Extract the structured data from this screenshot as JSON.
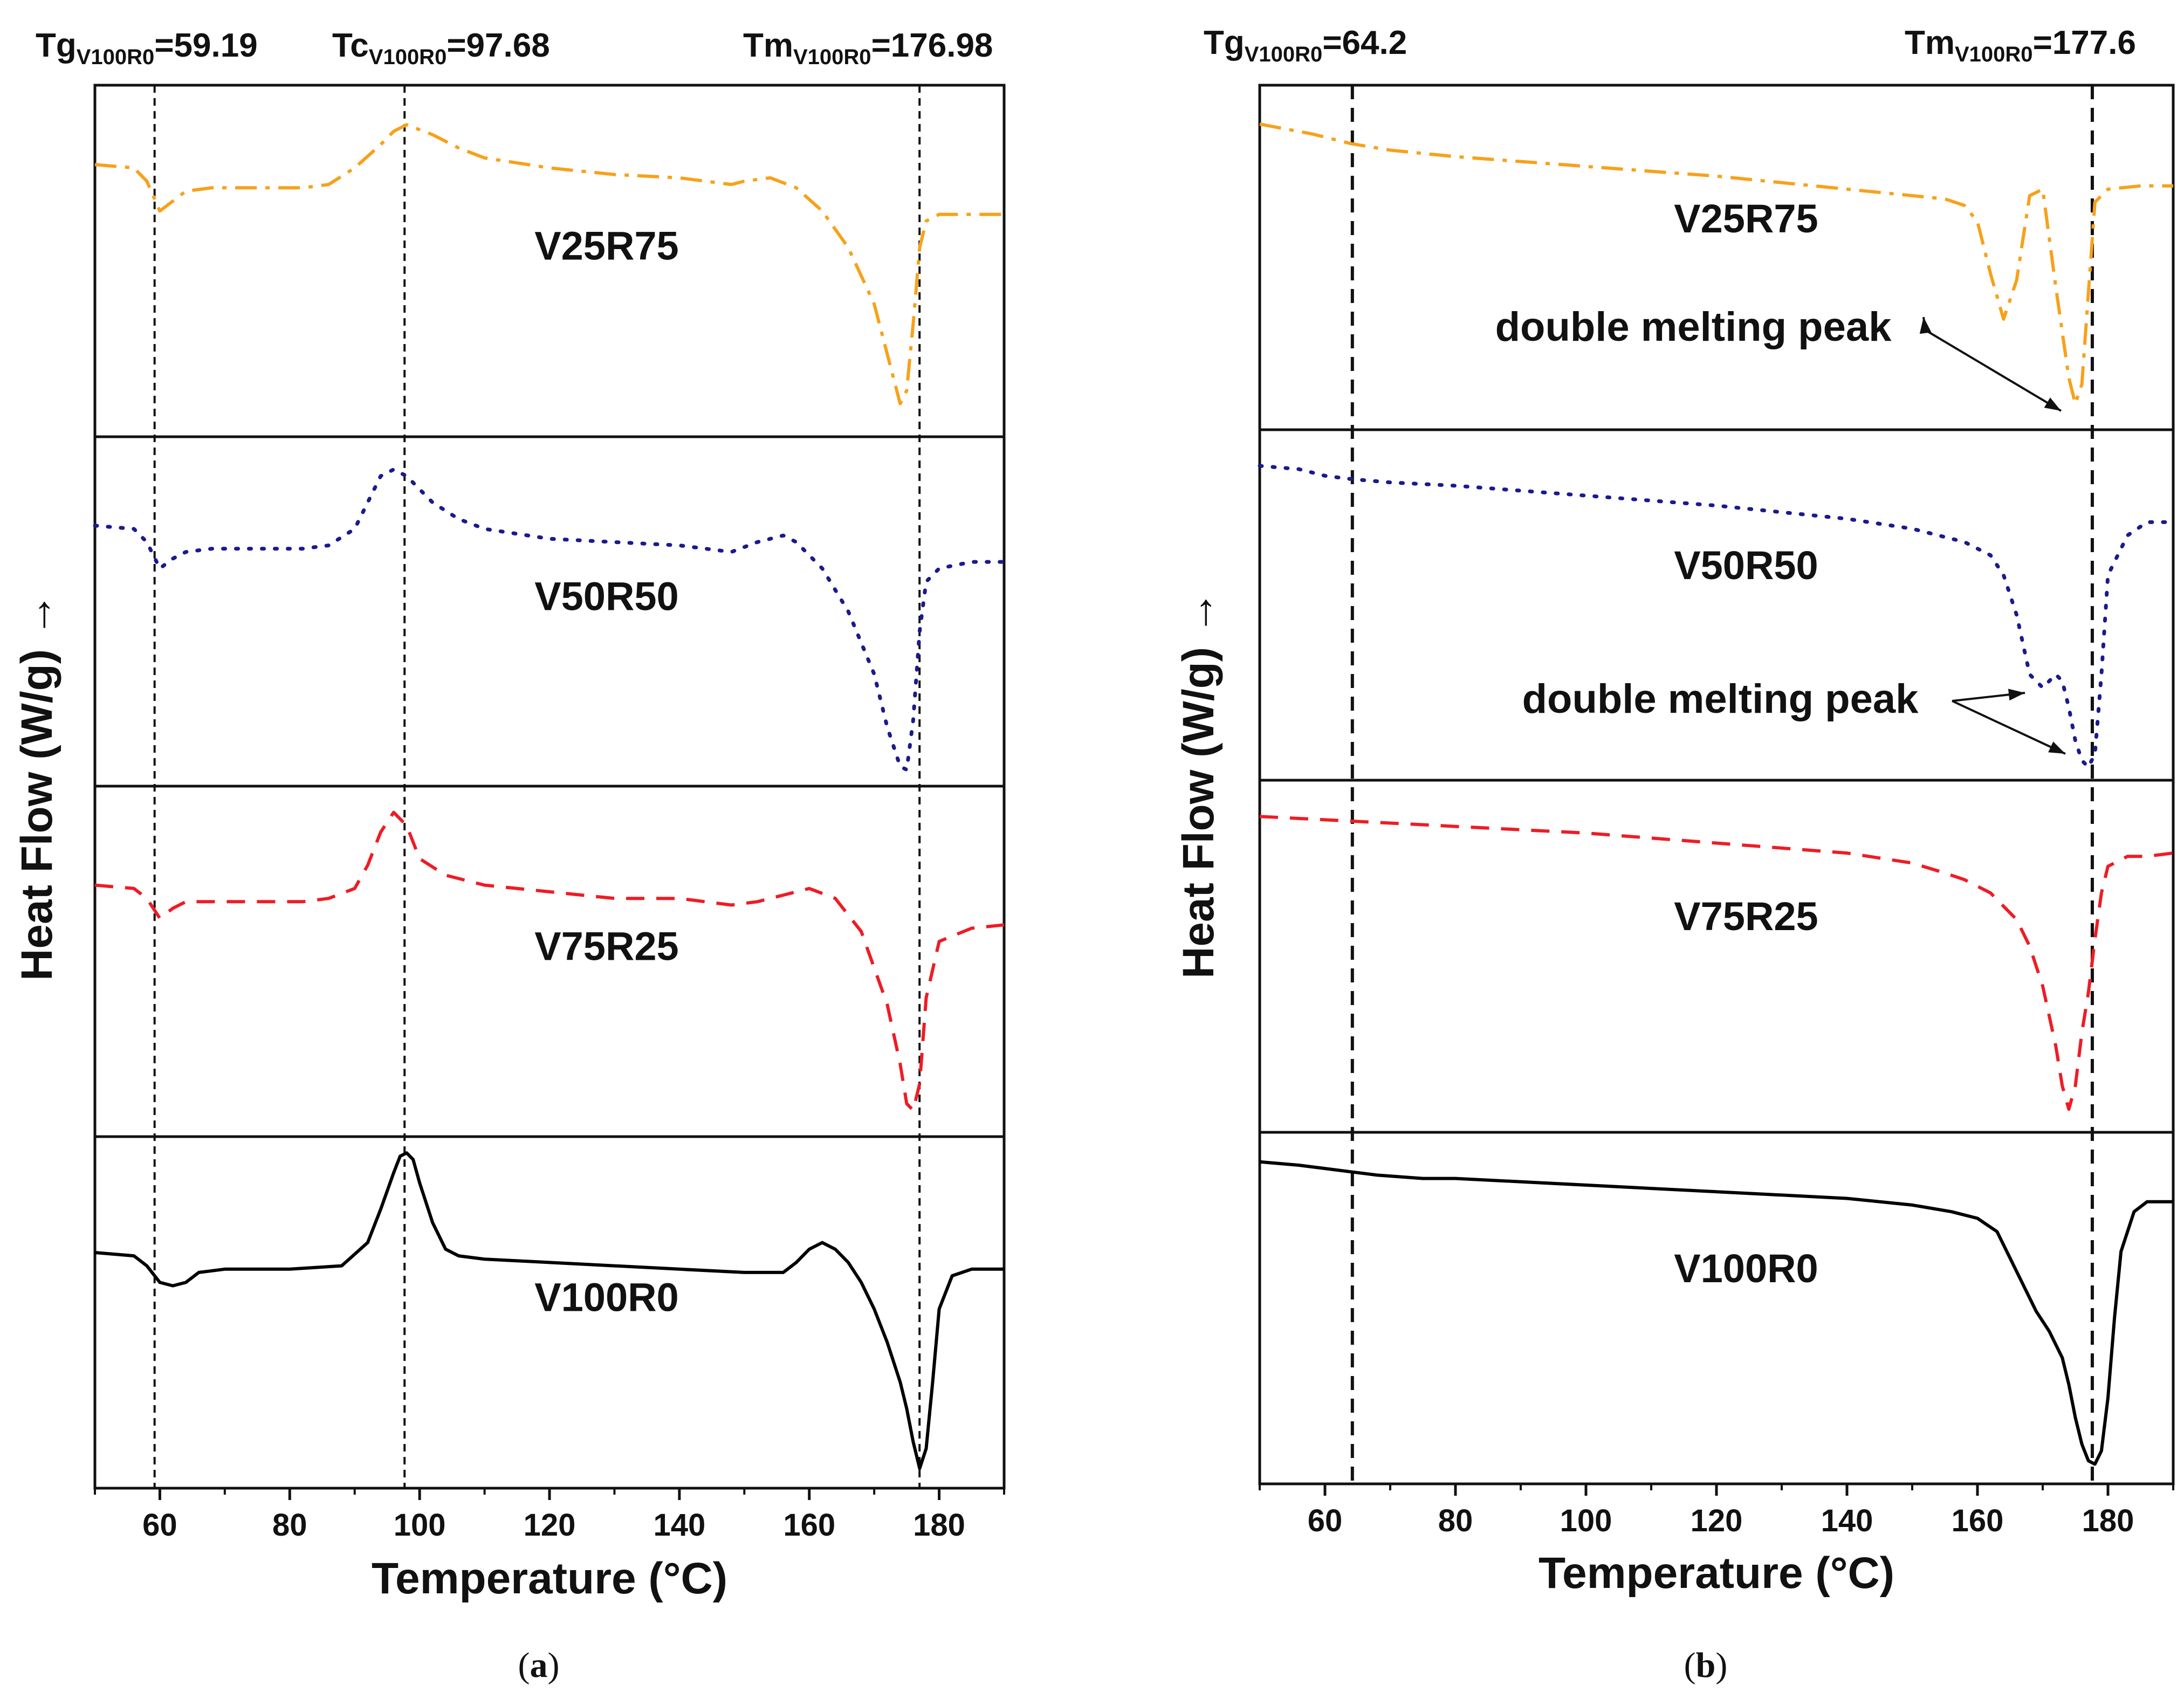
{
  "chart_data": [
    {
      "type": "line",
      "panel": "a",
      "caption": "(a)",
      "xlabel": "Temperature (°C)",
      "ylabel": "Heat Flow (W/g) →",
      "xlim": [
        50,
        190
      ],
      "xticks": [
        60,
        80,
        100,
        120,
        140,
        160,
        180
      ],
      "annotations": [
        {
          "name": "Tg",
          "sub": "V100R0",
          "value_text": "=59.19",
          "x": 59.19
        },
        {
          "name": "Tc",
          "sub": "V100R0",
          "value_text": "=97.68",
          "x": 97.68
        },
        {
          "name": "Tm",
          "sub": "V100R0",
          "value_text": "=176.98",
          "x": 176.98
        }
      ],
      "series": [
        {
          "name": "V25R75",
          "color": "#f7a11a",
          "dash": "dashdot",
          "x": [
            50,
            56,
            58,
            60,
            62,
            64,
            68,
            75,
            82,
            86,
            90,
            94,
            96,
            98,
            102,
            106,
            110,
            120,
            130,
            140,
            148,
            150,
            154,
            158,
            162,
            166,
            170,
            172,
            174,
            175,
            176,
            177,
            178,
            180,
            185,
            190
          ],
          "y": [
            0.8,
            0.79,
            0.75,
            0.66,
            0.69,
            0.72,
            0.73,
            0.73,
            0.73,
            0.74,
            0.79,
            0.86,
            0.9,
            0.92,
            0.89,
            0.85,
            0.82,
            0.79,
            0.77,
            0.76,
            0.74,
            0.75,
            0.76,
            0.73,
            0.66,
            0.55,
            0.38,
            0.23,
            0.08,
            0.12,
            0.32,
            0.55,
            0.63,
            0.65,
            0.65,
            0.65
          ]
        },
        {
          "name": "V50R50",
          "color": "#1a1a8e",
          "dash": "dotted",
          "x": [
            50,
            56,
            58,
            60,
            62,
            64,
            68,
            75,
            82,
            86,
            90,
            94,
            96,
            98,
            102,
            106,
            110,
            120,
            130,
            140,
            148,
            152,
            156,
            158,
            162,
            166,
            170,
            172,
            174,
            175,
            176,
            177,
            178,
            180,
            185,
            190
          ],
          "y": [
            0.77,
            0.76,
            0.72,
            0.64,
            0.67,
            0.69,
            0.7,
            0.7,
            0.7,
            0.71,
            0.76,
            0.92,
            0.94,
            0.92,
            0.84,
            0.79,
            0.76,
            0.73,
            0.72,
            0.71,
            0.69,
            0.72,
            0.74,
            0.72,
            0.64,
            0.51,
            0.32,
            0.16,
            0.04,
            0.03,
            0.18,
            0.45,
            0.6,
            0.64,
            0.66,
            0.66
          ]
        },
        {
          "name": "V75R25",
          "color": "#ee1c25",
          "dash": "dashed",
          "x": [
            50,
            56,
            58,
            60,
            62,
            64,
            68,
            75,
            82,
            86,
            90,
            92,
            94,
            96,
            98,
            100,
            104,
            110,
            120,
            130,
            140,
            148,
            152,
            156,
            160,
            164,
            168,
            172,
            174,
            175,
            176,
            177,
            178,
            180,
            185,
            190
          ],
          "y": [
            0.74,
            0.73,
            0.7,
            0.64,
            0.67,
            0.69,
            0.69,
            0.69,
            0.69,
            0.7,
            0.73,
            0.8,
            0.9,
            0.96,
            0.92,
            0.82,
            0.77,
            0.74,
            0.72,
            0.7,
            0.7,
            0.68,
            0.69,
            0.71,
            0.73,
            0.7,
            0.6,
            0.38,
            0.2,
            0.08,
            0.06,
            0.14,
            0.4,
            0.57,
            0.61,
            0.62
          ]
        },
        {
          "name": "V100R0",
          "color": "#000000",
          "dash": "solid",
          "x": [
            50,
            56,
            58,
            60,
            62,
            64,
            66,
            70,
            80,
            88,
            92,
            94,
            96,
            97,
            98,
            99,
            100,
            102,
            104,
            106,
            110,
            120,
            130,
            140,
            150,
            156,
            158,
            160,
            162,
            164,
            166,
            168,
            170,
            172,
            174,
            175,
            176,
            177,
            178,
            179,
            180,
            182,
            185,
            190
          ],
          "y": [
            0.69,
            0.68,
            0.65,
            0.6,
            0.59,
            0.6,
            0.63,
            0.64,
            0.64,
            0.65,
            0.72,
            0.82,
            0.93,
            0.98,
            0.99,
            0.97,
            0.9,
            0.78,
            0.7,
            0.68,
            0.67,
            0.66,
            0.65,
            0.64,
            0.63,
            0.63,
            0.66,
            0.7,
            0.72,
            0.7,
            0.66,
            0.6,
            0.52,
            0.42,
            0.3,
            0.22,
            0.12,
            0.04,
            0.1,
            0.3,
            0.52,
            0.62,
            0.64,
            0.64
          ]
        }
      ]
    },
    {
      "type": "line",
      "panel": "b",
      "caption": "(b)",
      "xlabel": "Temperature (°C)",
      "ylabel": "Heat Flow (W/g) →",
      "xlim": [
        50,
        190
      ],
      "xticks": [
        60,
        80,
        100,
        120,
        140,
        160,
        180
      ],
      "annotations": [
        {
          "name": "Tg",
          "sub": "V100R0",
          "value_text": "=64.2",
          "x": 64.2
        },
        {
          "name": "Tm",
          "sub": "V100R0",
          "value_text": "=177.6",
          "x": 177.6
        }
      ],
      "notes": [
        "double melting peak",
        "double melting peak"
      ],
      "series": [
        {
          "name": "V25R75",
          "color": "#f7a11a",
          "dash": "dashdot",
          "x": [
            50,
            58,
            64,
            70,
            80,
            100,
            120,
            140,
            150,
            155,
            158,
            160,
            162,
            164,
            166,
            168,
            170,
            172,
            174,
            175,
            176,
            177,
            178,
            180,
            185,
            190
          ],
          "y": [
            0.92,
            0.89,
            0.86,
            0.84,
            0.82,
            0.79,
            0.76,
            0.72,
            0.7,
            0.69,
            0.67,
            0.62,
            0.46,
            0.32,
            0.44,
            0.7,
            0.72,
            0.42,
            0.14,
            0.06,
            0.12,
            0.4,
            0.68,
            0.72,
            0.73,
            0.73
          ]
        },
        {
          "name": "V50R50",
          "color": "#1a1a8e",
          "dash": "dotted",
          "x": [
            50,
            56,
            60,
            64,
            70,
            80,
            100,
            120,
            140,
            150,
            158,
            162,
            164,
            166,
            168,
            170,
            171,
            172,
            173,
            174,
            175,
            176,
            177,
            178,
            179,
            180,
            183,
            186,
            190
          ],
          "y": [
            0.93,
            0.92,
            0.9,
            0.89,
            0.88,
            0.87,
            0.84,
            0.81,
            0.77,
            0.74,
            0.7,
            0.66,
            0.6,
            0.48,
            0.3,
            0.26,
            0.28,
            0.3,
            0.28,
            0.2,
            0.1,
            0.04,
            0.02,
            0.06,
            0.3,
            0.6,
            0.72,
            0.76,
            0.76
          ]
        },
        {
          "name": "V75R25",
          "color": "#ee1c25",
          "dash": "dashed",
          "x": [
            50,
            60,
            70,
            80,
            100,
            120,
            140,
            150,
            155,
            158,
            162,
            166,
            168,
            170,
            172,
            173,
            174,
            175,
            176,
            177,
            178,
            179,
            180,
            183,
            186,
            190
          ],
          "y": [
            0.93,
            0.92,
            0.91,
            0.9,
            0.88,
            0.85,
            0.82,
            0.79,
            0.76,
            0.74,
            0.7,
            0.62,
            0.54,
            0.42,
            0.24,
            0.12,
            0.05,
            0.12,
            0.28,
            0.4,
            0.56,
            0.7,
            0.78,
            0.81,
            0.81,
            0.82
          ]
        },
        {
          "name": "V100R0",
          "color": "#000000",
          "dash": "solid",
          "x": [
            50,
            56,
            60,
            64,
            68,
            75,
            80,
            100,
            120,
            140,
            150,
            156,
            160,
            163,
            165,
            167,
            169,
            171,
            173,
            174,
            175,
            176,
            177,
            178,
            179,
            180,
            181,
            182,
            184,
            186,
            190
          ],
          "y": [
            0.95,
            0.94,
            0.93,
            0.92,
            0.91,
            0.9,
            0.9,
            0.88,
            0.86,
            0.84,
            0.82,
            0.8,
            0.78,
            0.74,
            0.66,
            0.58,
            0.5,
            0.44,
            0.36,
            0.28,
            0.18,
            0.1,
            0.05,
            0.04,
            0.08,
            0.24,
            0.48,
            0.68,
            0.8,
            0.83,
            0.83
          ]
        }
      ]
    }
  ]
}
